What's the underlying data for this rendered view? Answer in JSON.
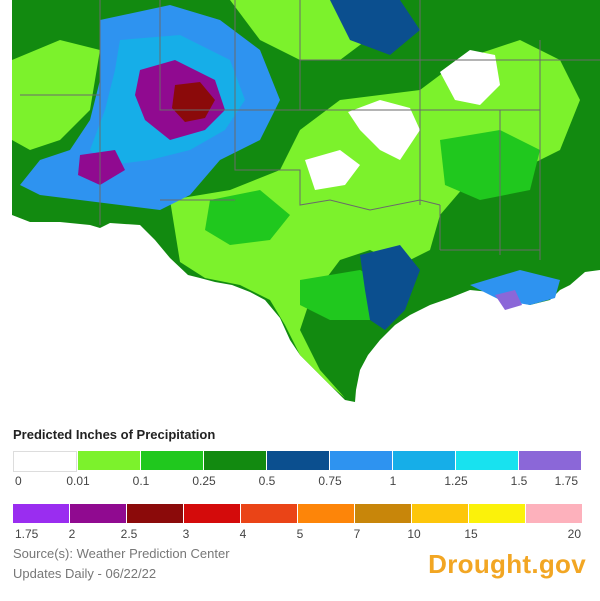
{
  "legend": {
    "title": "Predicted Inches of Precipitation",
    "row1": {
      "colors": [
        "#ffffff",
        "#7cf22c",
        "#20c81e",
        "#128a10",
        "#0b4f8f",
        "#2e93f0",
        "#16aee8",
        "#18e2ef",
        "#8b67d8"
      ],
      "ticks": [
        "0",
        "0.01",
        "0.1",
        "0.25",
        "0.5",
        "0.75",
        "1",
        "1.25",
        "1.5",
        "1.75"
      ]
    },
    "row2": {
      "colors": [
        "#9a2df0",
        "#900a90",
        "#8b0a0a",
        "#d40b0b",
        "#ea4417",
        "#fd8509",
        "#c8860a",
        "#fdc60a",
        "#fbf20a",
        "#fdb1bc"
      ],
      "ticks": [
        "1.75",
        "2",
        "2.5",
        "3",
        "4",
        "5",
        "7",
        "10",
        "15",
        "20"
      ]
    }
  },
  "footer": {
    "source": "Source(s): Weather Prediction Center",
    "updated": "Updates Daily - 06/22/22",
    "brand": "Drought.gov"
  },
  "map": {
    "colors": {
      "water": "#ffffff",
      "light_green": "#7cf22c",
      "mid_green": "#20c81e",
      "dark_green": "#128a10",
      "navy": "#0b4f8f",
      "blue": "#2e93f0",
      "cyan_blue": "#16aee8",
      "purple": "#900a90",
      "dark_red": "#8b0a0a",
      "lavender": "#8b67d8",
      "border": "#6a6a6a"
    }
  }
}
